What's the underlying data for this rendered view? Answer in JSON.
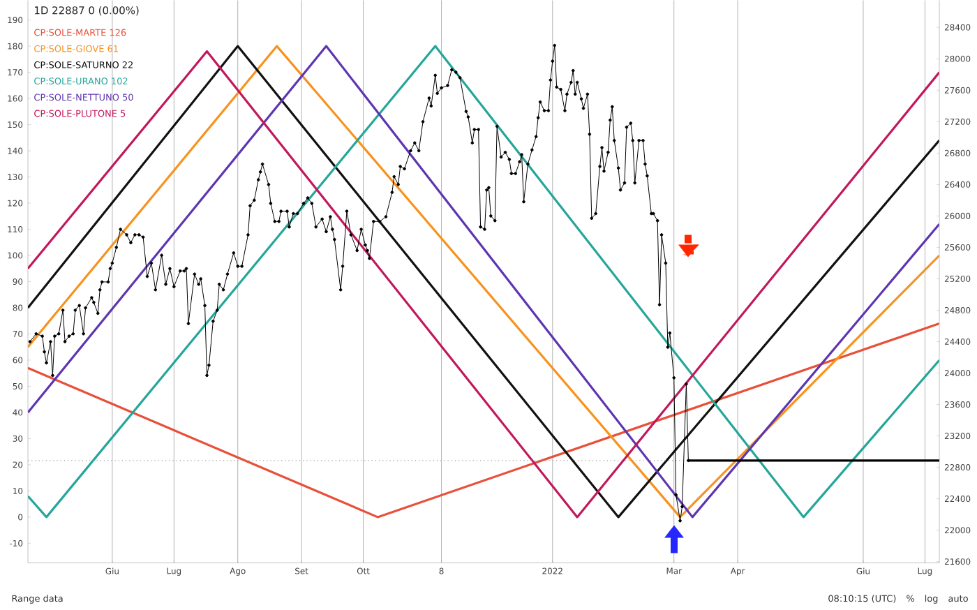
{
  "chart_data": {
    "type": "line",
    "title": "1D 22887 0 (0.00%)",
    "legend": "top left",
    "grid": "x",
    "xlim": [
      "2021-04-21",
      "2022-07-08"
    ],
    "xticks": [
      {
        "value": "2021-06-01",
        "label": "Giu"
      },
      {
        "value": "2021-07-01",
        "label": "Lug"
      },
      {
        "value": "2021-08-01",
        "label": "Ago"
      },
      {
        "value": "2021-09-01",
        "label": "Set"
      },
      {
        "value": "2021-10-01",
        "label": "Ott"
      },
      {
        "value": "2021-11-08",
        "label": "8"
      },
      {
        "value": "2022-01-01",
        "label": "2022"
      },
      {
        "value": "2022-03-01",
        "label": "Mar"
      },
      {
        "value": "2022-04-01",
        "label": "Apr"
      },
      {
        "value": "2022-06-01",
        "label": "Giu"
      },
      {
        "value": "2022-07-01",
        "label": "Lug"
      }
    ],
    "ylim": [
      -17.5,
      197.5
    ],
    "yticks": [
      -10,
      0,
      10,
      20,
      30,
      40,
      50,
      60,
      70,
      80,
      90,
      100,
      110,
      120,
      130,
      140,
      150,
      160,
      170,
      180,
      190
    ],
    "y2lim": [
      21584,
      28744
    ],
    "y2ticks": [
      21600,
      22000,
      22400,
      22800,
      23200,
      23600,
      24000,
      24400,
      24800,
      25200,
      25600,
      26000,
      26400,
      26800,
      27200,
      27600,
      28000,
      28400
    ],
    "ref_lines": [
      {
        "axis": "y2",
        "value": 22887,
        "color": "#9e9e9e",
        "line_style": "dotted"
      }
    ],
    "annotations": [
      "Range data",
      "08:10:15 (UTC)",
      "%",
      "log",
      "auto"
    ],
    "series": [
      {
        "name": "CP:SOLE-MARTE 126",
        "color": "#e8503a",
        "x": [
          "2021-04-21",
          "2021-10-08",
          "2022-07-08"
        ],
        "values": [
          57,
          0,
          74
        ]
      },
      {
        "name": "CP:SOLE-GIOVE 61",
        "color": "#f7931e",
        "x": [
          "2021-04-21",
          "2021-08-20",
          "2022-03-04",
          "2022-07-08"
        ],
        "values": [
          65,
          180,
          0,
          100
        ]
      },
      {
        "name": "CP:SOLE-SATURNO 22",
        "color": "#111111",
        "x": [
          "2021-04-21",
          "2021-08-01",
          "2022-02-02",
          "2022-07-08"
        ],
        "values": [
          80,
          180,
          0,
          144
        ]
      },
      {
        "name": "CP:SOLE-URANO 102",
        "color": "#26a69a",
        "x": [
          "2021-04-21",
          "2021-04-30",
          "2021-11-05",
          "2022-05-03",
          "2022-07-08"
        ],
        "values": [
          8,
          0,
          180,
          0,
          60
        ]
      },
      {
        "name": "CP:SOLE-NETTUNO 50",
        "color": "#5e35b1",
        "x": [
          "2021-04-21",
          "2021-09-13",
          "2022-03-10",
          "2022-07-08"
        ],
        "values": [
          40,
          180,
          0,
          112
        ]
      },
      {
        "name": "CP:SOLE-PLUTONE 5",
        "color": "#c2185b",
        "x": [
          "2021-04-21",
          "2021-07-17",
          "2022-01-13",
          "2022-07-08"
        ],
        "values": [
          95,
          178,
          0,
          170
        ]
      },
      {
        "color": "#000000",
        "axis": "y2",
        "marker": "circle",
        "x": [
          "2021-04-22",
          "2021-04-25",
          "2021-04-28",
          "2021-04-29",
          "2021-04-30",
          "2021-05-02",
          "2021-05-03",
          "2021-05-04",
          "2021-05-06",
          "2021-05-08",
          "2021-05-09",
          "2021-05-11",
          "2021-05-13",
          "2021-05-14",
          "2021-05-16",
          "2021-05-18",
          "2021-05-19",
          "2021-05-22",
          "2021-05-23",
          "2021-05-25",
          "2021-05-26",
          "2021-05-27",
          "2021-05-30",
          "2021-05-31",
          "2021-06-01",
          "2021-06-03",
          "2021-06-05",
          "2021-06-08",
          "2021-06-10",
          "2021-06-12",
          "2021-06-14",
          "2021-06-16",
          "2021-06-18",
          "2021-06-20",
          "2021-06-22",
          "2021-06-25",
          "2021-06-27",
          "2021-06-29",
          "2021-07-01",
          "2021-07-04",
          "2021-07-06",
          "2021-07-07",
          "2021-07-08",
          "2021-07-11",
          "2021-07-13",
          "2021-07-14",
          "2021-07-16",
          "2021-07-17",
          "2021-07-18",
          "2021-07-20",
          "2021-07-22",
          "2021-07-23",
          "2021-07-25",
          "2021-07-27",
          "2021-07-30",
          "2021-08-01",
          "2021-08-03",
          "2021-08-06",
          "2021-08-07",
          "2021-08-09",
          "2021-08-11",
          "2021-08-12",
          "2021-08-13",
          "2021-08-16",
          "2021-08-17",
          "2021-08-19",
          "2021-08-21",
          "2021-08-22",
          "2021-08-25",
          "2021-08-26",
          "2021-08-28",
          "2021-08-30",
          "2021-09-02",
          "2021-09-04",
          "2021-09-06",
          "2021-09-08",
          "2021-09-11",
          "2021-09-13",
          "2021-09-15",
          "2021-09-16",
          "2021-09-17",
          "2021-09-20",
          "2021-09-21",
          "2021-09-23",
          "2021-09-25",
          "2021-09-28",
          "2021-09-30",
          "2021-10-02",
          "2021-10-03",
          "2021-10-04",
          "2021-10-06",
          "2021-10-09",
          "2021-10-12",
          "2021-10-15",
          "2021-10-16",
          "2021-10-18",
          "2021-10-19",
          "2021-10-21",
          "2021-10-24",
          "2021-10-26",
          "2021-10-28",
          "2021-10-30",
          "2021-11-02",
          "2021-11-03",
          "2021-11-05",
          "2021-11-06",
          "2021-11-08",
          "2021-11-11",
          "2021-11-13",
          "2021-11-15",
          "2021-11-17",
          "2021-11-20",
          "2021-11-21",
          "2021-11-23",
          "2021-11-24",
          "2021-11-26",
          "2021-11-27",
          "2021-11-29",
          "2021-11-30",
          "2021-12-01",
          "2021-12-02",
          "2021-12-04",
          "2021-12-05",
          "2021-12-07",
          "2021-12-09",
          "2021-12-11",
          "2021-12-12",
          "2021-12-14",
          "2021-12-16",
          "2021-12-17",
          "2021-12-18",
          "2021-12-20",
          "2021-12-22",
          "2021-12-24",
          "2021-12-25",
          "2021-12-26",
          "2021-12-28",
          "2021-12-30",
          "2021-12-31",
          "2022-01-01",
          "2022-01-02",
          "2022-01-03",
          "2022-01-05",
          "2022-01-07",
          "2022-01-08",
          "2022-01-10",
          "2022-01-11",
          "2022-01-12",
          "2022-01-13",
          "2022-01-15",
          "2022-01-16",
          "2022-01-18",
          "2022-01-19",
          "2022-01-20",
          "2022-01-22",
          "2022-01-24",
          "2022-01-25",
          "2022-01-26",
          "2022-01-28",
          "2022-01-29",
          "2022-01-30",
          "2022-01-31",
          "2022-02-02",
          "2022-02-03",
          "2022-02-05",
          "2022-02-06",
          "2022-02-08",
          "2022-02-09",
          "2022-02-10",
          "2022-02-12",
          "2022-02-14",
          "2022-02-15",
          "2022-02-16",
          "2022-02-18",
          "2022-02-19",
          "2022-02-21",
          "2022-02-22",
          "2022-02-23",
          "2022-02-25",
          "2022-02-26",
          "2022-02-27",
          "2022-03-01",
          "2022-03-02",
          "2022-03-04",
          "2022-03-05",
          "2022-03-07",
          "2022-03-08"
        ],
        "values": [
          24400,
          24500,
          24470,
          24270,
          24130,
          24400,
          23970,
          24470,
          24500,
          24800,
          24400,
          24470,
          24500,
          24800,
          24860,
          24500,
          24830,
          24960,
          24900,
          24760,
          25060,
          25160,
          25160,
          25330,
          25400,
          25600,
          25830,
          25760,
          25660,
          25760,
          25760,
          25730,
          25230,
          25400,
          25060,
          25500,
          25130,
          25330,
          25100,
          25300,
          25300,
          25330,
          24630,
          25260,
          25130,
          25200,
          24860,
          23970,
          24100,
          24660,
          24800,
          25130,
          25060,
          25260,
          25530,
          25360,
          25360,
          25760,
          26130,
          26200,
          26460,
          26560,
          26660,
          26400,
          26160,
          25930,
          25930,
          26060,
          26060,
          25860,
          26030,
          26030,
          26160,
          26230,
          26160,
          25860,
          25960,
          25800,
          25990,
          25830,
          25700,
          25060,
          25360,
          26060,
          25760,
          25560,
          25830,
          25630,
          25560,
          25460,
          25930,
          25930,
          25990,
          26300,
          26500,
          26400,
          26630,
          26600,
          26830,
          26930,
          26830,
          27200,
          27500,
          27400,
          27790,
          27560,
          27630,
          27660,
          27860,
          27830,
          27760,
          27330,
          27260,
          26930,
          27100,
          27100,
          25860,
          25830,
          26330,
          26360,
          26000,
          25940,
          27140,
          26750,
          26810,
          26720,
          26540,
          26540,
          26690,
          26780,
          26180,
          26660,
          26840,
          27010,
          27250,
          27450,
          27340,
          27340,
          27730,
          27970,
          28170,
          27640,
          27610,
          27340,
          27550,
          27700,
          27850,
          27550,
          27700,
          27490,
          27370,
          27550,
          27040,
          25970,
          26030,
          26630,
          26870,
          26570,
          26810,
          27220,
          27390,
          26960,
          26610,
          26330,
          26420,
          27130,
          27180,
          26960,
          26420,
          26960,
          26960,
          26660,
          26510,
          26030,
          26030,
          25940,
          24870,
          25760,
          25400,
          24330,
          24510,
          23940,
          22450,
          22120,
          22300,
          23860,
          22887
        ]
      },
      {
        "color": "#000000",
        "axis": "y2",
        "x": [
          "2022-03-08",
          "2022-07-08"
        ],
        "values": [
          22887,
          22887
        ]
      }
    ]
  }
}
